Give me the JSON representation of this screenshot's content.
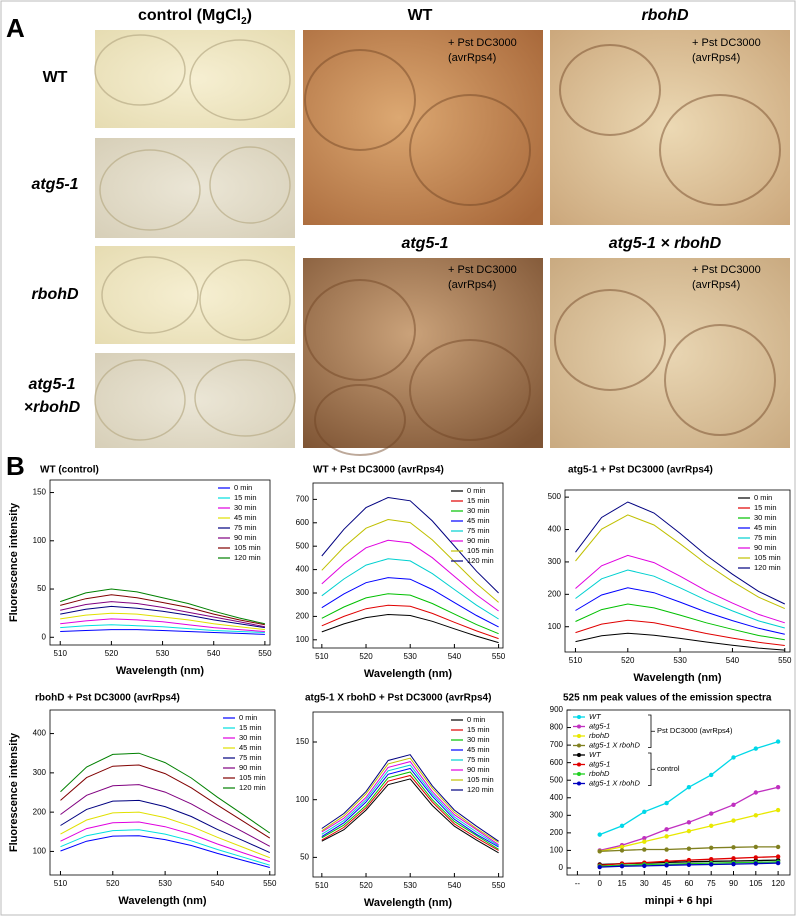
{
  "panel_a": {
    "letter": "A",
    "column_header": {
      "text": "control (MgCl",
      "subscript": "2",
      "close": ")"
    },
    "row_labels": [
      "WT",
      "atg5-1",
      "rbohD"
    ],
    "row_label_last": [
      "atg5-1",
      "×rbohD"
    ],
    "infected_titles": [
      "WT",
      "rbohD",
      "atg5-1",
      "atg5-1 × rbohD"
    ],
    "treatment": [
      "+ Pst DC3000",
      "(avrRps4)"
    ]
  },
  "panel_b": {
    "letter": "B"
  },
  "chart_data": [
    {
      "type": "line",
      "title": "WT (control)",
      "x_label": "Wavelength (nm)",
      "y_label": "Fluorescence intensity",
      "x": [
        510,
        515,
        520,
        525,
        530,
        535,
        540,
        545,
        550
      ],
      "xlim": [
        508,
        551
      ],
      "xticks": [
        510,
        520,
        530,
        540,
        550
      ],
      "ylim": [
        -8,
        163
      ],
      "yticks": [
        0,
        50,
        100,
        150
      ],
      "series": [
        {
          "name": "0 min",
          "color": "#0000ff",
          "values": [
            6,
            7,
            8,
            8,
            7,
            6,
            5,
            4,
            3
          ]
        },
        {
          "name": "15 min",
          "color": "#00e0e0",
          "values": [
            10,
            12,
            13,
            12,
            11,
            9,
            7,
            6,
            5
          ]
        },
        {
          "name": "30 min",
          "color": "#e000e0",
          "values": [
            14,
            17,
            19,
            18,
            16,
            13,
            10,
            8,
            6
          ]
        },
        {
          "name": "45 min",
          "color": "#e0e000",
          "values": [
            19,
            23,
            25,
            24,
            21,
            18,
            14,
            11,
            8
          ]
        },
        {
          "name": "75 min",
          "color": "#000080",
          "values": [
            24,
            29,
            32,
            30,
            27,
            23,
            18,
            14,
            10
          ]
        },
        {
          "name": "90 min",
          "color": "#800080",
          "values": [
            28,
            34,
            37,
            35,
            31,
            26,
            21,
            16,
            11
          ]
        },
        {
          "name": "105 min",
          "color": "#800000",
          "values": [
            33,
            40,
            44,
            41,
            36,
            31,
            24,
            18,
            13
          ]
        },
        {
          "name": "120 min",
          "color": "#008000",
          "values": [
            37,
            46,
            50,
            47,
            41,
            35,
            27,
            20,
            14
          ]
        }
      ]
    },
    {
      "type": "line",
      "title": "WT + Pst DC3000 (avrRps4)",
      "x_label": "Wavelength (nm)",
      "x": [
        510,
        515,
        520,
        525,
        530,
        535,
        540,
        545,
        550
      ],
      "xlim": [
        508,
        551
      ],
      "xticks": [
        510,
        520,
        530,
        540,
        550
      ],
      "ylim": [
        65,
        770
      ],
      "yticks": [
        100,
        200,
        300,
        400,
        500,
        600,
        700
      ],
      "series": [
        {
          "name": "0 min",
          "color": "#000000",
          "values": [
            134,
            168,
            195,
            208,
            204,
            179,
            147,
            116,
            88
          ]
        },
        {
          "name": "15 min",
          "color": "#e00000",
          "values": [
            160,
            200,
            233,
            248,
            243,
            213,
            175,
            138,
            105
          ]
        },
        {
          "name": "30 min",
          "color": "#00c000",
          "values": [
            192,
            240,
            279,
            297,
            291,
            255,
            210,
            165,
            126
          ]
        },
        {
          "name": "45 min",
          "color": "#0000ff",
          "values": [
            237,
            296,
            344,
            366,
            359,
            315,
            259,
            204,
            155
          ]
        },
        {
          "name": "75 min",
          "color": "#00d0d0",
          "values": [
            288,
            360,
            419,
            446,
            437,
            383,
            315,
            248,
            189
          ]
        },
        {
          "name": "90 min",
          "color": "#e000e0",
          "values": [
            339,
            424,
            493,
            525,
            514,
            451,
            371,
            292,
            223
          ]
        },
        {
          "name": "105 min",
          "color": "#c0c000",
          "values": [
            397,
            496,
            577,
            614,
            601,
            527,
            434,
            341,
            260
          ]
        },
        {
          "name": "120 min",
          "color": "#000080",
          "values": [
            458,
            572,
            665,
            708,
            694,
            608,
            501,
            393,
            300
          ]
        }
      ]
    },
    {
      "type": "line",
      "title": "atg5-1 + Pst DC3000 (avrRps4)",
      "x_label": "Wavelength (nm)",
      "x": [
        510,
        515,
        520,
        525,
        530,
        535,
        540,
        545,
        550
      ],
      "xlim": [
        508,
        551
      ],
      "xticks": [
        510,
        520,
        530,
        540,
        550
      ],
      "ylim": [
        22,
        522
      ],
      "yticks": [
        100,
        200,
        300,
        400,
        500
      ],
      "series": [
        {
          "name": "0 min",
          "color": "#000000",
          "values": [
            54,
            72,
            80,
            74,
            64,
            53,
            43,
            34,
            28
          ]
        },
        {
          "name": "15 min",
          "color": "#e00000",
          "values": [
            82,
            108,
            120,
            112,
            96,
            79,
            65,
            52,
            42
          ]
        },
        {
          "name": "30 min",
          "color": "#00c000",
          "values": [
            116,
            153,
            170,
            158,
            136,
            112,
            92,
            73,
            60
          ]
        },
        {
          "name": "45 min",
          "color": "#0000ff",
          "values": [
            150,
            198,
            220,
            205,
            176,
            145,
            119,
            95,
            77
          ]
        },
        {
          "name": "75 min",
          "color": "#00d0d0",
          "values": [
            187,
            248,
            275,
            256,
            220,
            182,
            149,
            118,
            96
          ]
        },
        {
          "name": "90 min",
          "color": "#e000e0",
          "values": [
            218,
            288,
            320,
            298,
            256,
            211,
            173,
            138,
            112
          ]
        },
        {
          "name": "105 min",
          "color": "#c0c000",
          "values": [
            303,
            401,
            445,
            414,
            356,
            294,
            240,
            191,
            156
          ]
        },
        {
          "name": "120 min",
          "color": "#000080",
          "values": [
            330,
            437,
            485,
            451,
            388,
            320,
            262,
            209,
            170
          ]
        }
      ]
    },
    {
      "type": "line",
      "title": "rbohD + Pst DC3000 (avrRps4)",
      "x_label": "Wavelength (nm)",
      "y_label": "Fluorescence intensity",
      "x": [
        510,
        515,
        520,
        525,
        530,
        535,
        540,
        545,
        550
      ],
      "xlim": [
        508,
        551
      ],
      "xticks": [
        510,
        520,
        530,
        540,
        550
      ],
      "ylim": [
        40,
        460
      ],
      "yticks": [
        100,
        200,
        300,
        400
      ],
      "series": [
        {
          "name": "0 min",
          "color": "#0000ff",
          "values": [
            101,
            126,
            139,
            140,
            130,
            115,
            95,
            77,
            59
          ]
        },
        {
          "name": "15 min",
          "color": "#00e0e0",
          "values": [
            112,
            140,
            153,
            155,
            144,
            127,
            105,
            85,
            65
          ]
        },
        {
          "name": "30 min",
          "color": "#e000e0",
          "values": [
            126,
            158,
            173,
            175,
            163,
            144,
            119,
            96,
            74
          ]
        },
        {
          "name": "45 min",
          "color": "#e0e000",
          "values": [
            144,
            180,
            198,
            200,
            186,
            164,
            136,
            110,
            84
          ]
        },
        {
          "name": "75 min",
          "color": "#000080",
          "values": [
            166,
            207,
            228,
            230,
            214,
            189,
            156,
            127,
            97
          ]
        },
        {
          "name": "90 min",
          "color": "#800080",
          "values": [
            194,
            243,
            267,
            270,
            251,
            221,
            184,
            149,
            113
          ]
        },
        {
          "name": "105 min",
          "color": "#800000",
          "values": [
            230,
            288,
            317,
            320,
            298,
            262,
            218,
            176,
            134
          ]
        },
        {
          "name": "120 min",
          "color": "#008000",
          "values": [
            252,
            315,
            347,
            350,
            326,
            287,
            238,
            193,
            147
          ]
        }
      ]
    },
    {
      "type": "line",
      "title": "atg5-1 X rbohD + Pst DC3000 (avrRps4)",
      "x_label": "Wavelength (nm)",
      "x": [
        510,
        515,
        520,
        525,
        530,
        535,
        540,
        545,
        550
      ],
      "xlim": [
        508,
        551
      ],
      "xticks": [
        510,
        520,
        530,
        540,
        550
      ],
      "ylim": [
        33,
        176
      ],
      "yticks": [
        50,
        100,
        150
      ],
      "series": [
        {
          "name": "0 min",
          "color": "#000000",
          "values": [
            64,
            74,
            91,
            113,
            118,
            95,
            77,
            65,
            54
          ]
        },
        {
          "name": "15 min",
          "color": "#e00000",
          "values": [
            65,
            76,
            93,
            116,
            121,
            98,
            79,
            67,
            56
          ]
        },
        {
          "name": "30 min",
          "color": "#00c000",
          "values": [
            67,
            78,
            95,
            119,
            124,
            100,
            81,
            69,
            57
          ]
        },
        {
          "name": "45 min",
          "color": "#0000ff",
          "values": [
            68,
            80,
            98,
            122,
            127,
            103,
            83,
            70,
            59
          ]
        },
        {
          "name": "75 min",
          "color": "#00d0d0",
          "values": [
            70,
            82,
            100,
            125,
            130,
            105,
            85,
            72,
            60
          ]
        },
        {
          "name": "90 min",
          "color": "#e000e0",
          "values": [
            72,
            84,
            102,
            128,
            133,
            107,
            87,
            74,
            61
          ]
        },
        {
          "name": "105 min",
          "color": "#c0c000",
          "values": [
            73,
            86,
            105,
            131,
            136,
            110,
            89,
            75,
            63
          ]
        },
        {
          "name": "120 min",
          "color": "#000080",
          "values": [
            75,
            88,
            107,
            134,
            139,
            112,
            91,
            77,
            64
          ]
        }
      ]
    },
    {
      "type": "line",
      "title": "525 nm peak values of the emission spectra",
      "x_label": "minpi + 6 hpi",
      "markers": true,
      "x": [
        0,
        15,
        30,
        45,
        60,
        75,
        90,
        105,
        120
      ],
      "xlim": [
        -22,
        128
      ],
      "xticks": [
        {
          "value": -15,
          "label": "--"
        },
        0,
        15,
        30,
        45,
        60,
        75,
        90,
        105,
        120
      ],
      "ylim": [
        -40,
        900
      ],
      "yticks": [
        0,
        100,
        200,
        300,
        400,
        500,
        600,
        700,
        800,
        900
      ],
      "legend_groups": [
        "Pst DC3000 (avrRps4)",
        "control"
      ],
      "series": [
        {
          "name": "WT",
          "color": "#00d8e8",
          "values": [
            190,
            240,
            320,
            370,
            460,
            530,
            630,
            680,
            720
          ]
        },
        {
          "name": "atg5-1",
          "color": "#c030c0",
          "values": [
            100,
            130,
            170,
            220,
            260,
            310,
            360,
            430,
            460
          ]
        },
        {
          "name": "rbohD",
          "color": "#e8e800",
          "values": [
            95,
            120,
            150,
            180,
            210,
            240,
            270,
            300,
            330
          ]
        },
        {
          "name": "atg5-1 X rbohD",
          "color": "#808020",
          "values": [
            95,
            100,
            105,
            105,
            110,
            115,
            118,
            120,
            120
          ]
        },
        {
          "name": "WT",
          "color": "#000000",
          "values": [
            20,
            25,
            28,
            32,
            35,
            38,
            40,
            42,
            45
          ]
        },
        {
          "name": "atg5-1",
          "color": "#e00000",
          "values": [
            15,
            25,
            30,
            38,
            45,
            50,
            55,
            60,
            65
          ]
        },
        {
          "name": "rbohD",
          "color": "#20d020",
          "values": [
            10,
            15,
            20,
            22,
            25,
            28,
            30,
            32,
            35
          ]
        },
        {
          "name": "atg5-1 X rbohD",
          "color": "#0000c0",
          "values": [
            5,
            10,
            12,
            15,
            18,
            20,
            22,
            25,
            28
          ]
        }
      ]
    }
  ]
}
